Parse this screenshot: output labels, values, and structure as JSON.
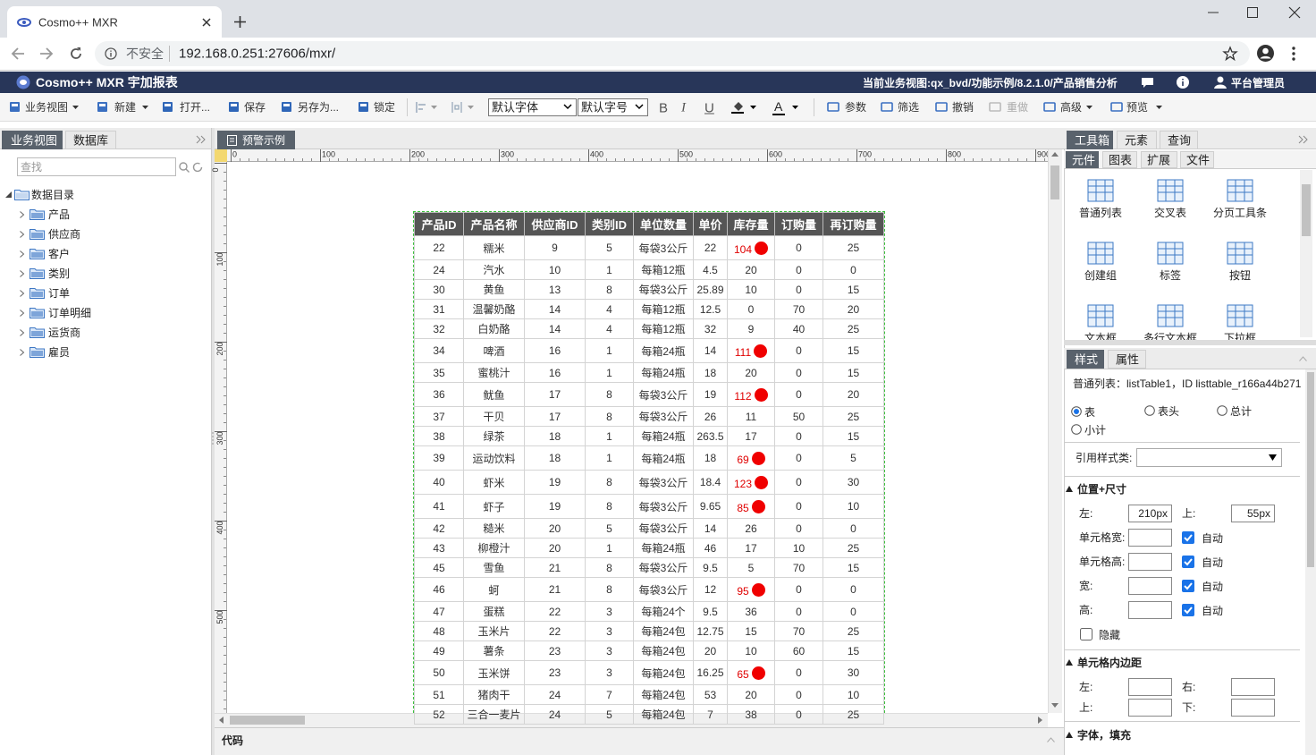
{
  "browser": {
    "tab_title": "Cosmo++ MXR",
    "security": "不安全",
    "url": "192.168.0.251:27606/mxr/"
  },
  "app": {
    "title": "Cosmo++ MXR 宇加报表",
    "context": "当前业务视图:qx_bvd/功能示例/8.2.1.0/产品销售分析",
    "user": "平台管理员"
  },
  "toolbar": {
    "left": [
      "业务视图",
      "新建",
      "打开...",
      "保存",
      "另存为...",
      "锁定"
    ],
    "font": "默认字体",
    "size": "默认字号",
    "format": [
      "B",
      "I",
      "U"
    ],
    "font_color": "A",
    "right": [
      "参数",
      "筛选",
      "撤销",
      "重做",
      "高级",
      "预览"
    ]
  },
  "left_panel": {
    "tabs": [
      "业务视图",
      "数据库"
    ],
    "search": "查找",
    "tree": {
      "root": "数据目录",
      "children": [
        "产品",
        "供应商",
        "客户",
        "类别",
        "订单",
        "订单明细",
        "运货商",
        "雇员"
      ]
    }
  },
  "editor": {
    "tab": "预警示例",
    "ruler_x": [
      0,
      100,
      200,
      300,
      400,
      500,
      600,
      700,
      800,
      900
    ],
    "ruler_y": [
      0,
      100,
      200,
      300,
      400,
      500
    ],
    "table": {
      "columns": [
        "产品ID",
        "产品名称",
        "供应商ID",
        "类别ID",
        "单位数量",
        "单价",
        "库存量",
        "订购量",
        "再订购量"
      ],
      "rows": [
        {
          "cells": [
            22,
            "糯米",
            9,
            5,
            "每袋3公斤",
            22,
            104,
            0,
            25
          ],
          "alert": true
        },
        {
          "cells": [
            24,
            "汽水",
            10,
            1,
            "每箱12瓶",
            4.5,
            20,
            0,
            0
          ],
          "alert": false
        },
        {
          "cells": [
            30,
            "黄鱼",
            13,
            8,
            "每袋3公斤",
            25.89,
            10,
            0,
            15
          ],
          "alert": false
        },
        {
          "cells": [
            31,
            "温馨奶酪",
            14,
            4,
            "每箱12瓶",
            12.5,
            0,
            70,
            20
          ],
          "alert": false
        },
        {
          "cells": [
            32,
            "白奶酪",
            14,
            4,
            "每箱12瓶",
            32,
            9,
            40,
            25
          ],
          "alert": false
        },
        {
          "cells": [
            34,
            "啤酒",
            16,
            1,
            "每箱24瓶",
            14,
            111,
            0,
            15
          ],
          "alert": true
        },
        {
          "cells": [
            35,
            "蜜桃汁",
            16,
            1,
            "每箱24瓶",
            18,
            20,
            0,
            15
          ],
          "alert": false
        },
        {
          "cells": [
            36,
            "鱿鱼",
            17,
            8,
            "每袋3公斤",
            19,
            112,
            0,
            20
          ],
          "alert": true
        },
        {
          "cells": [
            37,
            "干贝",
            17,
            8,
            "每袋3公斤",
            26,
            11,
            50,
            25
          ],
          "alert": false
        },
        {
          "cells": [
            38,
            "绿茶",
            18,
            1,
            "每箱24瓶",
            263.5,
            17,
            0,
            15
          ],
          "alert": false
        },
        {
          "cells": [
            39,
            "运动饮料",
            18,
            1,
            "每箱24瓶",
            18,
            69,
            0,
            5
          ],
          "alert": true
        },
        {
          "cells": [
            40,
            "虾米",
            19,
            8,
            "每袋3公斤",
            18.4,
            123,
            0,
            30
          ],
          "alert": true
        },
        {
          "cells": [
            41,
            "虾子",
            19,
            8,
            "每袋3公斤",
            9.65,
            85,
            0,
            10
          ],
          "alert": true
        },
        {
          "cells": [
            42,
            "糙米",
            20,
            5,
            "每袋3公斤",
            14,
            26,
            0,
            0
          ],
          "alert": false
        },
        {
          "cells": [
            43,
            "柳橙汁",
            20,
            1,
            "每箱24瓶",
            46,
            17,
            10,
            25
          ],
          "alert": false
        },
        {
          "cells": [
            45,
            "雪鱼",
            21,
            8,
            "每袋3公斤",
            9.5,
            5,
            70,
            15
          ],
          "alert": false
        },
        {
          "cells": [
            46,
            "蚵",
            21,
            8,
            "每袋3公斤",
            12,
            95,
            0,
            0
          ],
          "alert": true
        },
        {
          "cells": [
            47,
            "蛋糕",
            22,
            3,
            "每箱24个",
            9.5,
            36,
            0,
            0
          ],
          "alert": false
        },
        {
          "cells": [
            48,
            "玉米片",
            22,
            3,
            "每箱24包",
            12.75,
            15,
            70,
            25
          ],
          "alert": false
        },
        {
          "cells": [
            49,
            "薯条",
            23,
            3,
            "每箱24包",
            20,
            10,
            60,
            15
          ],
          "alert": false
        },
        {
          "cells": [
            50,
            "玉米饼",
            23,
            3,
            "每箱24包",
            16.25,
            65,
            0,
            30
          ],
          "alert": true
        },
        {
          "cells": [
            51,
            "猪肉干",
            24,
            7,
            "每箱24包",
            53,
            20,
            0,
            10
          ],
          "alert": false
        },
        {
          "cells": [
            52,
            "三合一麦片",
            24,
            5,
            "每箱24包",
            7,
            38,
            0,
            25
          ],
          "alert": false
        }
      ]
    },
    "code_panel": "代码"
  },
  "right_panel": {
    "tabs": [
      "工具箱",
      "元素",
      "查询"
    ],
    "subtabs": [
      "元件",
      "图表",
      "扩展",
      "文件"
    ],
    "components": [
      "普通列表",
      "交叉表",
      "分页工具条",
      "创建组",
      "标签",
      "按钮",
      "文本框",
      "多行文本框",
      "下拉框"
    ],
    "style_tabs": [
      "样式",
      "属性"
    ],
    "info": "普通列表：listTable1，ID listtable_r166a44b271",
    "radios": [
      "表",
      "表头",
      "总计",
      "小计"
    ],
    "style_class": "引用样式类:",
    "position_title": "位置+尺寸",
    "position": [
      {
        "label": "左:",
        "value": "210px"
      },
      {
        "label": "上:",
        "value": "55px"
      }
    ],
    "sizes": [
      {
        "label": "单元格宽:",
        "auto": "自动"
      },
      {
        "label": "单元格高:",
        "auto": "自动"
      },
      {
        "label": "宽:",
        "auto": "自动"
      },
      {
        "label": "高:",
        "auto": "自动"
      }
    ],
    "hidden": "隐藏",
    "padding_title": "单元格内边距",
    "padding": [
      "左:",
      "右:",
      "上:",
      "下:"
    ],
    "font_title": "字体，填充"
  }
}
